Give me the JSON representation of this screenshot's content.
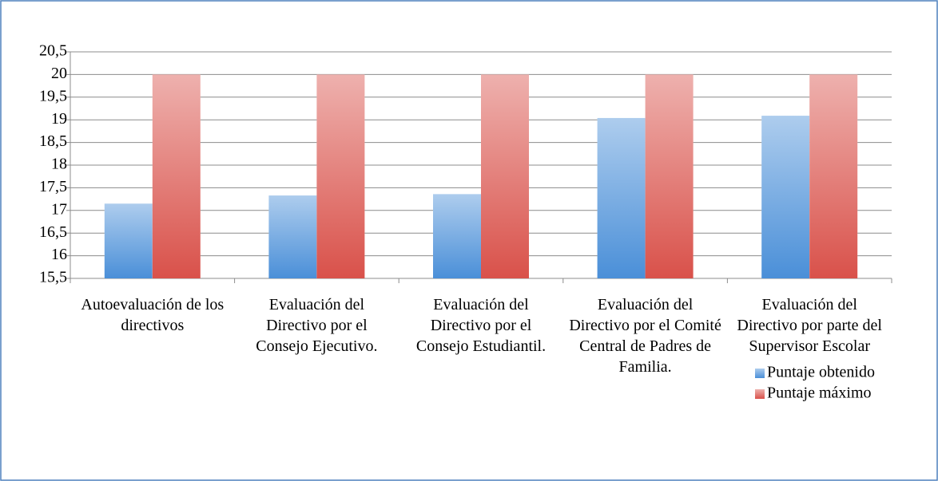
{
  "chart_data": {
    "type": "bar",
    "categories": [
      "Autoevaluación de los directivos",
      "Evaluación del Directivo por el Consejo Ejecutivo.",
      "Evaluación del Directivo por el Consejo Estudiantil.",
      "Evaluación del Directivo por el Comité Central de Padres de Familia.",
      "Evaluación del Directivo por parte del Supervisor Escolar"
    ],
    "series": [
      {
        "name": "Puntaje obtenido",
        "color": "#4a8fd8",
        "values": [
          17.15,
          17.33,
          17.36,
          19.04,
          19.09
        ]
      },
      {
        "name": "Puntaje máximo",
        "color": "#d9514a",
        "values": [
          20,
          20,
          20,
          20,
          20
        ]
      }
    ],
    "ylim": [
      15.5,
      20.5
    ],
    "yticks": [
      {
        "value": 15.5,
        "label": "15,5"
      },
      16,
      {
        "value": 16.5,
        "label": "16,5"
      },
      17,
      {
        "value": 17.5,
        "label": "17,5"
      },
      18,
      {
        "value": 18.5,
        "label": "18,5"
      },
      19,
      {
        "value": 19.5,
        "label": "19,5"
      },
      20,
      {
        "value": 20.5,
        "label": "20,5"
      }
    ],
    "grid": true,
    "legend": "bottom-right"
  }
}
